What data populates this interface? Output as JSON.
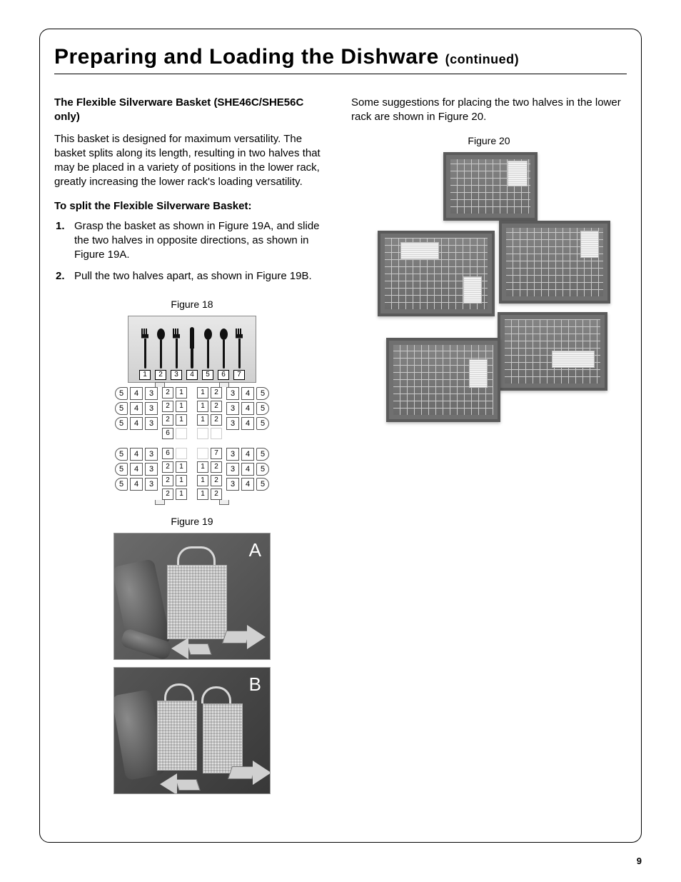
{
  "title_main": "Preparing and Loading the Dishware",
  "title_cont": "(continued)",
  "left": {
    "subhead": "The Flexible Silverware Basket (SHE46C/SHE56C only)",
    "intro": "This basket is designed for maximum versatility. The basket splits along its length, resulting in two halves that may be placed in a variety of positions in the lower rack, greatly increasing the lower rack's loading versatility.",
    "split_heading": "To split the Flexible Silverware Basket:",
    "steps": [
      "Grasp the basket as shown in Figure 19A, and slide the two halves in opposite directions, as shown in Figure 19A.",
      "Pull the two halves apart, as shown in Figure 19B."
    ],
    "fig18_caption": "Figure 18",
    "fig19_caption": "Figure 19",
    "fig19_label_a": "A",
    "fig19_label_b": "B"
  },
  "right": {
    "intro": "Some suggestions for placing the two halves in the lower rack are shown in Figure 20.",
    "fig20_caption": "Figure 20"
  },
  "fig18": {
    "utensil_numbers": [
      "1",
      "2",
      "3",
      "4",
      "5",
      "6",
      "7"
    ],
    "utensil_types": [
      "fork",
      "spoon",
      "fork",
      "knife",
      "spoon",
      "spoon",
      "fork"
    ],
    "side_left": [
      "5",
      "4",
      "3"
    ],
    "side_right": [
      "3",
      "4",
      "5"
    ],
    "mid_row_numbers": [
      [
        "2",
        "1",
        "",
        "1",
        "2"
      ],
      [
        "2",
        "1",
        "",
        "1",
        "2"
      ],
      [
        "2",
        "1",
        "",
        "1",
        "2"
      ],
      [
        "6",
        "",
        "",
        "",
        "7"
      ],
      [
        "2",
        "1",
        "",
        "1",
        "2"
      ],
      [
        "2",
        "1",
        "",
        "1",
        "2"
      ],
      [
        "2",
        "1",
        "",
        "1",
        "2"
      ]
    ],
    "mid_extra_row": [
      "6",
      "",
      "",
      "",
      ""
    ]
  },
  "page_number": "9",
  "colors": {
    "text": "#000000",
    "border": "#000000",
    "photo_dark": "#4a4a4a",
    "photo_light": "#efefef",
    "frame_gray": "#5a5a5a"
  }
}
